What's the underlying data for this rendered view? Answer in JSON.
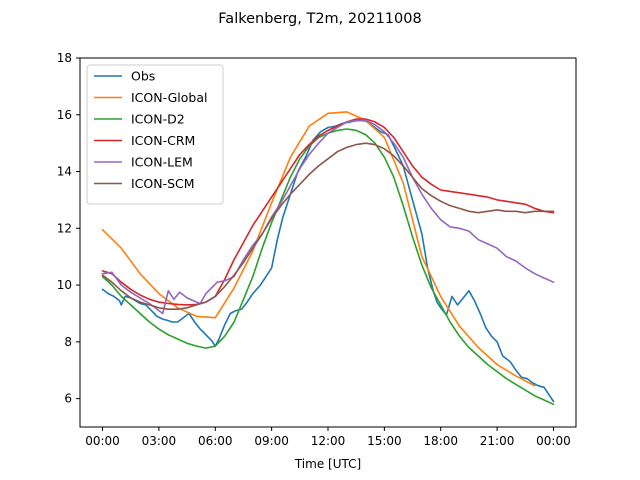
{
  "chart_data": {
    "type": "line",
    "title": "Falkenberg, T2m, 20211008",
    "xlabel": "Time [UTC]",
    "ylabel": "",
    "xlim": [
      -1.2,
      25.2
    ],
    "ylim": [
      5,
      18
    ],
    "xticks": [
      0,
      3,
      6,
      9,
      12,
      15,
      18,
      21,
      24
    ],
    "xtick_labels": [
      "00:00",
      "03:00",
      "06:00",
      "09:00",
      "12:00",
      "15:00",
      "18:00",
      "21:00",
      "00:00"
    ],
    "yticks": [
      6,
      8,
      10,
      12,
      14,
      16,
      18
    ],
    "ytick_labels": [
      "6",
      "8",
      "10",
      "12",
      "14",
      "16",
      "18"
    ],
    "grid": false,
    "legend_position": "upper-left",
    "series": [
      {
        "name": "Obs",
        "color": "#1f77b4",
        "x": [
          0,
          0.3,
          0.6,
          0.9,
          1.0,
          1.2,
          1.5,
          2.0,
          2.3,
          2.6,
          2.9,
          3.2,
          3.5,
          3.7,
          4.0,
          4.3,
          4.6,
          4.9,
          5.2,
          5.5,
          5.8,
          6.0,
          6.2,
          6.5,
          6.8,
          7.1,
          7.4,
          7.7,
          8.0,
          8.4,
          8.7,
          9.0,
          9.3,
          9.6,
          10.0,
          10.4,
          10.8,
          11.2,
          11.6,
          12.0,
          12.4,
          12.8,
          13.2,
          13.6,
          14.0,
          14.4,
          14.8,
          15.2,
          15.5,
          16.0,
          16.5,
          17.0,
          17.3,
          17.6,
          17.8,
          18.0,
          18.3,
          18.6,
          18.9,
          19.2,
          19.5,
          19.8,
          20.1,
          20.4,
          20.7,
          21.0,
          21.3,
          21.7,
          22.0,
          22.3,
          22.6,
          22.9,
          23.2,
          23.5,
          23.8,
          24.0
        ],
        "y": [
          9.85,
          9.7,
          9.6,
          9.45,
          9.3,
          9.6,
          9.55,
          9.35,
          9.3,
          9.1,
          8.9,
          8.8,
          8.75,
          8.7,
          8.7,
          8.85,
          9.0,
          8.7,
          8.45,
          8.25,
          8.05,
          7.85,
          8.1,
          8.6,
          9.0,
          9.1,
          9.15,
          9.4,
          9.7,
          10.0,
          10.3,
          10.6,
          11.6,
          12.4,
          13.2,
          14.0,
          14.5,
          15.1,
          15.4,
          15.55,
          15.6,
          15.7,
          15.75,
          15.8,
          15.78,
          15.6,
          15.4,
          15.3,
          14.9,
          14.2,
          13.0,
          11.8,
          10.6,
          9.8,
          9.4,
          9.2,
          8.95,
          9.6,
          9.3,
          9.55,
          9.8,
          9.45,
          9.0,
          8.5,
          8.2,
          8.0,
          7.5,
          7.3,
          7.0,
          6.75,
          6.7,
          6.55,
          6.45,
          6.4,
          6.1,
          5.9
        ],
        "visible_values_note": ""
      },
      {
        "name": "ICON-Global",
        "color": "#ff7f0e",
        "x": [
          0,
          1,
          2,
          3,
          4,
          5,
          6,
          7,
          8,
          9,
          10,
          11,
          12,
          13,
          14,
          15,
          16,
          17,
          18,
          19,
          20,
          21,
          22,
          23
        ],
        "y": [
          11.95,
          11.3,
          10.4,
          9.7,
          9.2,
          8.9,
          8.85,
          9.9,
          11.2,
          12.9,
          14.5,
          15.6,
          16.05,
          16.1,
          15.8,
          15.2,
          13.6,
          11.0,
          9.6,
          8.55,
          7.8,
          7.2,
          6.8,
          6.45
        ]
      },
      {
        "name": "ICON-D2",
        "color": "#2ca02c",
        "x": [
          0,
          0.5,
          1,
          1.5,
          2,
          2.5,
          3,
          3.5,
          4,
          4.5,
          5,
          5.5,
          6,
          6.5,
          7,
          7.5,
          8,
          8.5,
          9,
          9.5,
          10,
          10.5,
          11,
          11.5,
          12,
          12.5,
          13,
          13.5,
          14,
          14.5,
          15,
          15.5,
          16,
          16.5,
          17,
          17.5,
          18,
          18.5,
          19,
          19.5,
          20,
          20.5,
          21,
          21.5,
          22,
          22.5,
          23,
          23.5,
          24
        ],
        "y": [
          10.3,
          10.0,
          9.6,
          9.3,
          9.0,
          8.7,
          8.45,
          8.25,
          8.1,
          7.95,
          7.85,
          7.78,
          7.85,
          8.2,
          8.7,
          9.5,
          10.3,
          11.3,
          12.2,
          13.0,
          13.8,
          14.45,
          14.9,
          15.2,
          15.35,
          15.45,
          15.5,
          15.45,
          15.3,
          15.0,
          14.5,
          13.8,
          12.8,
          11.7,
          10.7,
          9.9,
          9.3,
          8.7,
          8.2,
          7.8,
          7.5,
          7.2,
          6.95,
          6.7,
          6.5,
          6.3,
          6.1,
          5.95,
          5.8
        ]
      },
      {
        "name": "ICON-CRM",
        "color": "#d62728",
        "x": [
          0,
          0.5,
          1,
          1.5,
          2,
          2.5,
          3,
          3.5,
          4,
          4.5,
          5,
          5.5,
          6,
          6.5,
          7,
          7.5,
          8,
          8.5,
          9,
          9.5,
          10,
          10.5,
          11,
          11.5,
          12,
          12.5,
          13,
          13.5,
          14,
          14.5,
          15,
          15.5,
          16,
          16.5,
          17,
          17.5,
          18,
          18.5,
          19,
          19.5,
          20,
          20.5,
          21,
          21.5,
          22,
          22.5,
          23,
          23.5,
          24
        ],
        "y": [
          10.5,
          10.4,
          10.1,
          9.85,
          9.65,
          9.5,
          9.4,
          9.35,
          9.32,
          9.3,
          9.32,
          9.4,
          9.6,
          10.2,
          10.9,
          11.5,
          12.1,
          12.6,
          13.1,
          13.6,
          14.1,
          14.6,
          14.95,
          15.25,
          15.45,
          15.6,
          15.75,
          15.85,
          15.85,
          15.75,
          15.55,
          15.2,
          14.7,
          14.2,
          13.8,
          13.55,
          13.35,
          13.3,
          13.25,
          13.2,
          13.15,
          13.1,
          13.0,
          12.95,
          12.9,
          12.85,
          12.7,
          12.6,
          12.55
        ]
      },
      {
        "name": "ICON-LEM",
        "color": "#9467bd",
        "x": [
          0,
          0.5,
          1,
          1.5,
          2,
          2.5,
          3,
          3.2,
          3.5,
          3.8,
          4.1,
          4.5,
          5,
          5.2,
          5.5,
          5.8,
          6.1,
          6.5,
          7,
          7.5,
          8,
          8.5,
          9,
          9.5,
          10,
          10.5,
          11,
          11.5,
          12,
          12.5,
          13,
          13.5,
          14,
          14.5,
          15,
          15.5,
          16,
          16.5,
          17,
          17.5,
          18,
          18.5,
          19,
          19.5,
          20,
          20.5,
          21,
          21.5,
          22,
          22.5,
          23,
          23.5,
          24
        ],
        "y": [
          10.4,
          10.45,
          10.0,
          9.75,
          9.55,
          9.35,
          9.1,
          9.0,
          9.8,
          9.5,
          9.75,
          9.55,
          9.4,
          9.35,
          9.7,
          9.9,
          10.1,
          10.15,
          10.3,
          10.9,
          11.4,
          11.8,
          12.4,
          12.9,
          13.5,
          14.1,
          14.6,
          15.0,
          15.35,
          15.55,
          15.75,
          15.8,
          15.8,
          15.65,
          15.4,
          15.0,
          14.5,
          13.8,
          13.2,
          12.7,
          12.3,
          12.05,
          12.0,
          11.9,
          11.6,
          11.45,
          11.3,
          11.0,
          10.85,
          10.6,
          10.4,
          10.25,
          10.1
        ]
      },
      {
        "name": "ICON-SCM",
        "color": "#8c564b",
        "x": [
          0,
          0.5,
          1,
          1.5,
          2,
          2.5,
          3,
          3.5,
          4,
          4.5,
          5,
          5.5,
          6,
          6.5,
          7,
          7.5,
          8,
          8.5,
          9,
          9.5,
          10,
          10.5,
          11,
          11.5,
          12,
          12.5,
          13,
          13.5,
          14,
          14.5,
          15,
          15.5,
          16,
          16.5,
          17,
          17.5,
          18,
          18.5,
          19,
          19.5,
          20,
          20.5,
          21,
          21.5,
          22,
          22.5,
          23,
          23.5,
          24
        ],
        "y": [
          10.35,
          10.1,
          9.8,
          9.55,
          9.4,
          9.3,
          9.2,
          9.15,
          9.15,
          9.2,
          9.3,
          9.4,
          9.6,
          9.95,
          10.35,
          10.8,
          11.3,
          11.8,
          12.35,
          12.8,
          13.2,
          13.55,
          13.9,
          14.2,
          14.45,
          14.7,
          14.85,
          14.95,
          15.0,
          14.95,
          14.8,
          14.55,
          14.2,
          13.8,
          13.4,
          13.15,
          12.95,
          12.8,
          12.7,
          12.6,
          12.55,
          12.6,
          12.65,
          12.6,
          12.6,
          12.55,
          12.6,
          12.6,
          12.6
        ]
      }
    ]
  }
}
